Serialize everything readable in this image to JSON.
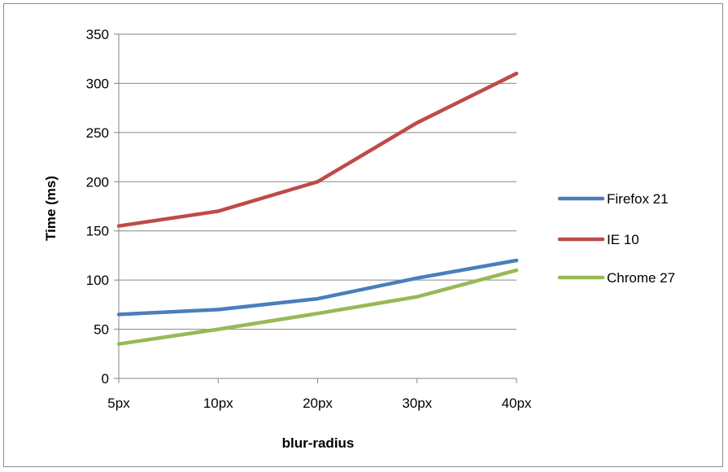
{
  "chart_data": {
    "type": "line",
    "title": "",
    "xlabel": "blur-radius",
    "ylabel": "Time (ms)",
    "categories": [
      "5px",
      "10px",
      "20px",
      "30px",
      "40px"
    ],
    "ylim": [
      0,
      350
    ],
    "yticks": [
      0,
      50,
      100,
      150,
      200,
      250,
      300,
      350
    ],
    "grid": true,
    "legend_position": "right",
    "series": [
      {
        "name": "Firefox 21",
        "color": "#4a7ebb",
        "values": [
          65,
          70,
          81,
          102,
          120
        ]
      },
      {
        "name": "IE 10",
        "color": "#be4b48",
        "values": [
          155,
          170,
          200,
          260,
          310
        ]
      },
      {
        "name": "Chrome 27",
        "color": "#98b954",
        "values": [
          35,
          50,
          66,
          83,
          110
        ]
      }
    ]
  }
}
